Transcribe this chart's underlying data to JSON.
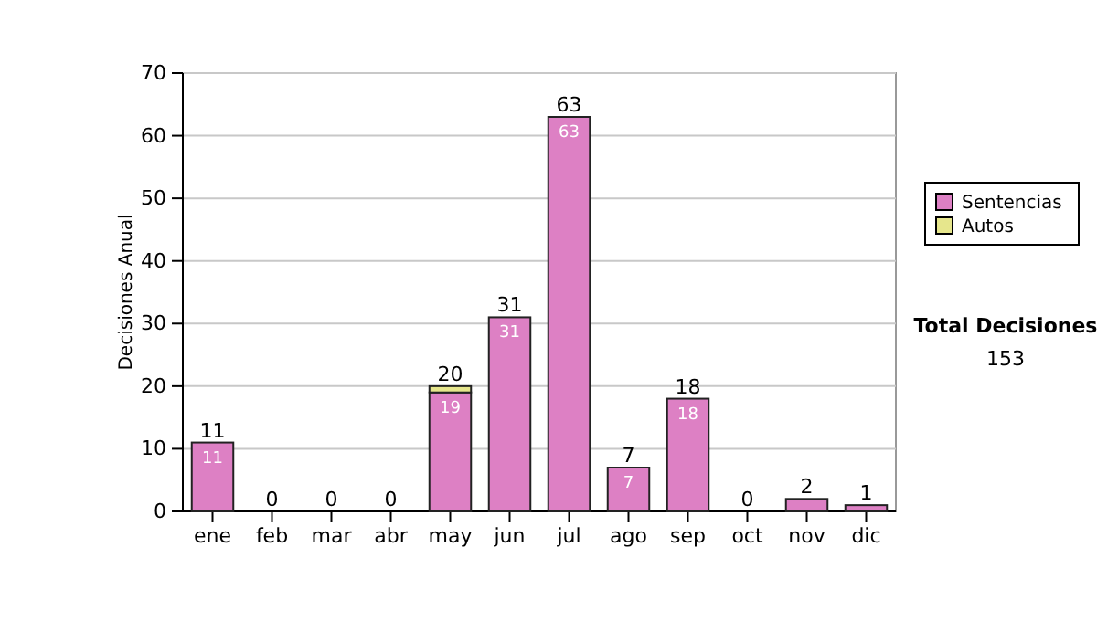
{
  "chart_data": {
    "type": "bar",
    "stacked": true,
    "ylabel": "Decisiones Anual",
    "categories": [
      "ene",
      "feb",
      "mar",
      "abr",
      "may",
      "jun",
      "jul",
      "ago",
      "sep",
      "oct",
      "nov",
      "dic"
    ],
    "series": [
      {
        "name": "Sentencias",
        "color": "#dd80c4",
        "values": [
          11,
          0,
          0,
          0,
          19,
          31,
          63,
          7,
          18,
          0,
          2,
          1
        ],
        "value_labels": [
          "11",
          null,
          null,
          null,
          "19",
          "31",
          "63",
          "7",
          "18",
          null,
          null,
          null
        ]
      },
      {
        "name": "Autos",
        "color": "#e6e68c",
        "values": [
          0,
          0,
          0,
          0,
          1,
          0,
          0,
          0,
          0,
          0,
          0,
          0
        ]
      }
    ],
    "totals": [
      "11",
      "0",
      "0",
      "0",
      "20",
      "31",
      "63",
      "7",
      "18",
      "0",
      "2",
      "1"
    ],
    "ylim": [
      0,
      70
    ],
    "yticks": [
      0,
      10,
      20,
      30,
      40,
      50,
      60,
      70
    ],
    "grid": "y",
    "legend": "right",
    "annotations": [
      "Total Decisiones",
      "153"
    ]
  }
}
